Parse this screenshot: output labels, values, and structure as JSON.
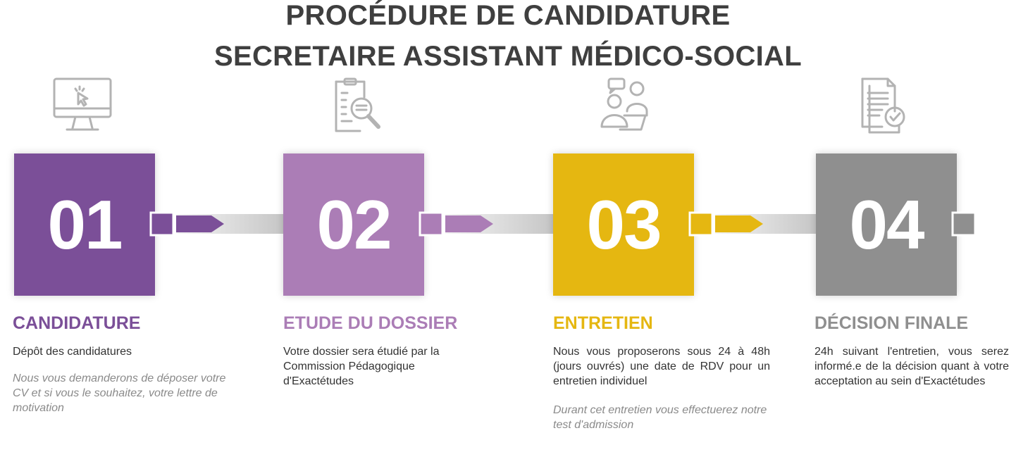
{
  "title": {
    "line1": "PROCÉDURE DE CANDIDATURE",
    "line2": "SECRETAIRE ASSISTANT MÉDICO-SOCIAL"
  },
  "colors": {
    "step1": "#7b4f98",
    "step2": "#ab7db6",
    "step3": "#e5b711",
    "step4": "#8f8f8f",
    "title": "#3f3f3f",
    "icon": "#b3b3b3"
  },
  "steps": [
    {
      "number": "01",
      "icon": "computer-cursor-icon",
      "heading": "CANDIDATURE",
      "description": "Dépôt des candidatures",
      "note": "Nous vous demanderons de déposer votre CV et si vous le souhaitez, votre lettre de motivation"
    },
    {
      "number": "02",
      "icon": "document-search-icon",
      "heading": "ETUDE DU DOSSIER",
      "description": "Votre dossier sera étudié par la Commission Pédagogique d'Exactétudes",
      "note": ""
    },
    {
      "number": "03",
      "icon": "interview-people-icon",
      "heading": "ENTRETIEN",
      "description": "Nous vous proposerons sous 24 à 48h (jours ouvrés) une date de RDV pour un entretien individuel",
      "note": "Durant cet entretien vous effectuerez notre test d'admission"
    },
    {
      "number": "04",
      "icon": "document-check-icon",
      "heading": "DÉCISION FINALE",
      "description": "24h suivant l'entretien, vous serez informé.e de la décision quant à votre acceptation au sein d'Exactétudes",
      "note": ""
    }
  ]
}
